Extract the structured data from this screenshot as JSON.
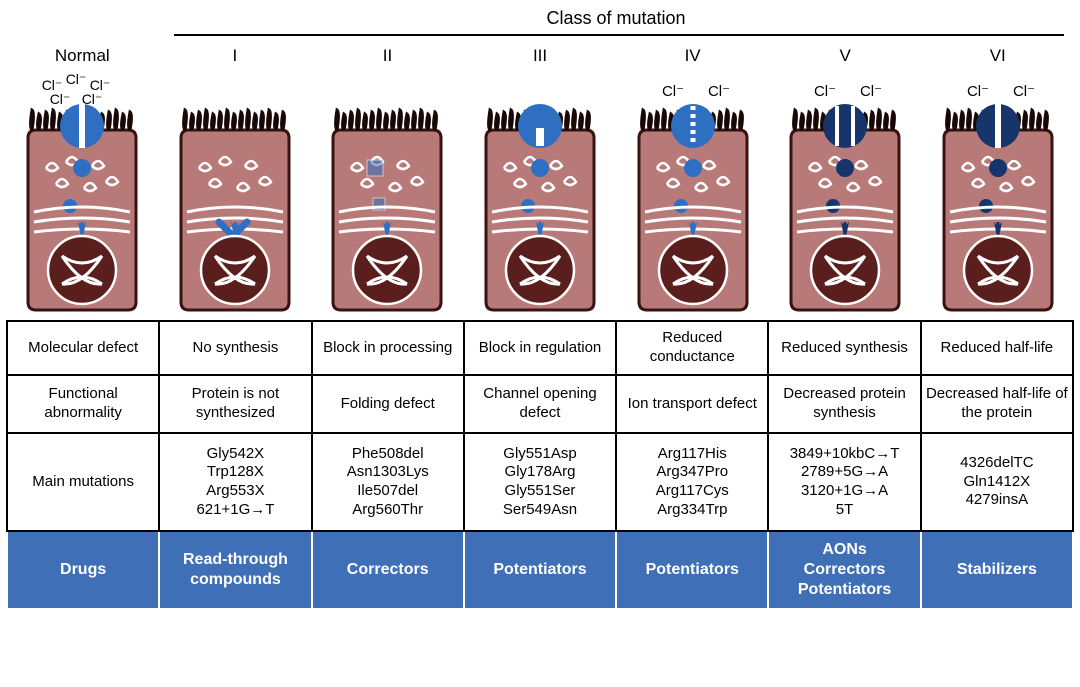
{
  "title": "Class of mutation",
  "colors": {
    "cell_fill": "#b77a78",
    "cell_stroke": "#3a1210",
    "cell_dark": "#914d4b",
    "nucleus": "#5a1f1d",
    "dna": "#ffffff",
    "cilia": "#1a0806",
    "vesicle_stroke": "#ffffff",
    "channel_blue": "#2f6fc1",
    "channel_dark": "#17356a",
    "drugs_bg": "#3e6fb7",
    "drugs_text": "#ffffff",
    "border": "#000000"
  },
  "columns": [
    {
      "id": "normal",
      "header": "Normal",
      "channel": {
        "present": true,
        "open": true,
        "color": "blue",
        "dashed": false,
        "low": false
      },
      "cl_labels": [
        "Cl⁻",
        "Cl⁻",
        "Cl⁻",
        "Cl⁻",
        "Cl⁻"
      ],
      "cl_layout": "cluster",
      "vesicles_filled": true,
      "defect_mark": "none",
      "molecular_defect": "Molecular defect",
      "functional_abnormality": "Functional abnormality",
      "main_mutations": [
        "Main mutations"
      ],
      "drug": "Drugs"
    },
    {
      "id": "class1",
      "header": "I",
      "channel": {
        "present": false
      },
      "cl_labels": [],
      "vesicles_filled": false,
      "defect_mark": "x",
      "molecular_defect": "No synthesis",
      "functional_abnormality": "Protein is not synthesized",
      "main_mutations": [
        "Gly542X",
        "Trp128X",
        "Arg553X",
        "621+1G→T"
      ],
      "drug": "Read-through compounds"
    },
    {
      "id": "class2",
      "header": "II",
      "channel": {
        "present": false
      },
      "cl_labels": [],
      "vesicles_filled": false,
      "defect_mark": "squares",
      "molecular_defect": "Block in processing",
      "functional_abnormality": "Folding defect",
      "main_mutations": [
        "Phe508del",
        "Asn1303Lys",
        "Ile507del",
        "Arg560Thr"
      ],
      "drug": "Correctors"
    },
    {
      "id": "class3",
      "header": "III",
      "channel": {
        "present": true,
        "open": false,
        "color": "blue",
        "dashed": false,
        "low": false
      },
      "cl_labels": [],
      "vesicles_filled": true,
      "defect_mark": "none",
      "molecular_defect": "Block in regulation",
      "functional_abnormality": "Channel opening defect",
      "main_mutations": [
        "Gly551Asp",
        "Gly178Arg",
        "Gly551Ser",
        "Ser549Asn"
      ],
      "drug": "Potentiators"
    },
    {
      "id": "class4",
      "header": "IV",
      "channel": {
        "present": true,
        "open": true,
        "color": "blue",
        "dashed": true,
        "low": false
      },
      "cl_labels": [
        "Cl⁻",
        "Cl⁻"
      ],
      "cl_layout": "pair",
      "vesicles_filled": true,
      "defect_mark": "none",
      "molecular_defect": "Reduced conductance",
      "functional_abnormality": "Ion transport defect",
      "main_mutations": [
        "Arg117His",
        "Arg347Pro",
        "Arg117Cys",
        "Arg334Trp"
      ],
      "drug": "Potentiators"
    },
    {
      "id": "class5",
      "header": "V",
      "channel": {
        "present": true,
        "open": true,
        "color": "dark",
        "dashed": false,
        "low": true
      },
      "cl_labels": [
        "Cl⁻",
        "Cl⁻"
      ],
      "cl_layout": "pair",
      "vesicles_filled": true,
      "vesicle_color": "dark",
      "defect_mark": "none",
      "molecular_defect": "Reduced synthesis",
      "functional_abnormality": "Decreased protein synthesis",
      "main_mutations": [
        "3849+10kbC→T",
        "2789+5G→A",
        "3120+1G→A",
        "5T"
      ],
      "drug": "AONs Correctors Potentiators"
    },
    {
      "id": "class6",
      "header": "VI",
      "channel": {
        "present": true,
        "open": true,
        "color": "dark",
        "dashed": false,
        "low": false
      },
      "cl_labels": [
        "Cl⁻",
        "Cl⁻"
      ],
      "cl_layout": "pair",
      "vesicles_filled": true,
      "vesicle_color": "dark",
      "defect_mark": "none",
      "molecular_defect": "Reduced half-life",
      "functional_abnormality": "Decreased half-life of the protein",
      "main_mutations": [
        "4326delTC",
        "Gln1412X",
        "4279insA"
      ],
      "drug": "Stabilizers"
    }
  ],
  "row_labels": {
    "molecular_defect": "Molecular defect",
    "functional_abnormality": "Functional abnormality",
    "main_mutations": "Main mutations",
    "drugs": "Drugs"
  },
  "typography": {
    "header_fontsize": 17,
    "title_fontsize": 18,
    "table_fontsize": 15,
    "drugs_fontsize": 16
  }
}
